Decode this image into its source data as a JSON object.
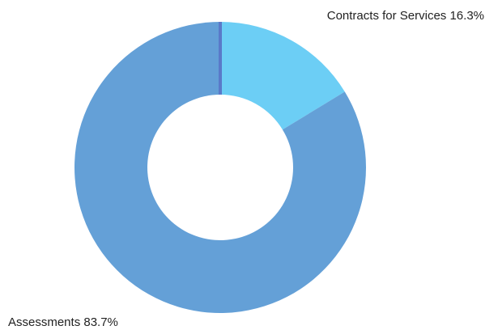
{
  "chart_data": {
    "type": "pie",
    "donut": true,
    "slices": [
      {
        "name": "Contracts for Services",
        "value": 16.3,
        "label": "Contracts for Services  16.3%",
        "color": "#6ccef5"
      },
      {
        "name": "Assessments",
        "value": 83.7,
        "label": "Assessments  83.7%",
        "color": "#64a0d7"
      }
    ],
    "separator_color": "#5a79c9"
  }
}
